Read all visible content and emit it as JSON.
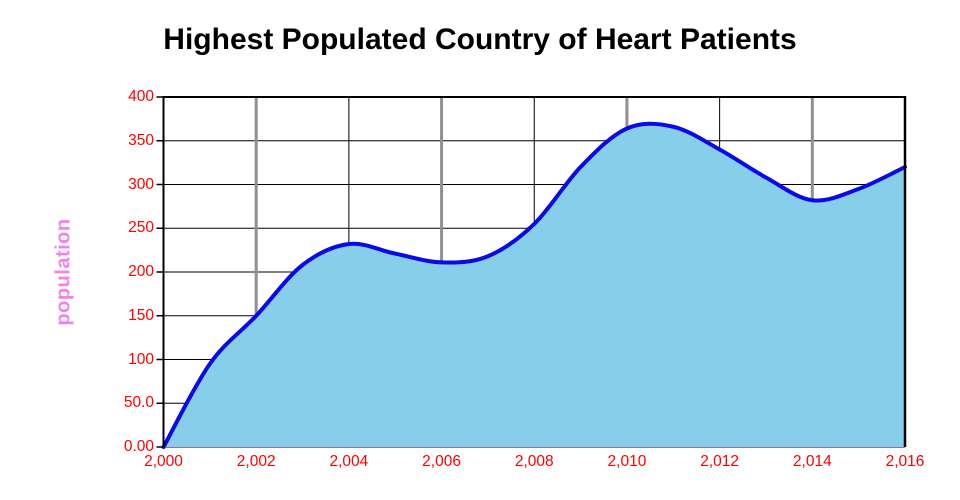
{
  "chart_data": {
    "type": "area",
    "title": "Highest Populated Country of Heart Patients",
    "xlabel": "",
    "ylabel": "population",
    "curve": "smooth",
    "grid": "on",
    "legend": "none",
    "x": [
      2000,
      2001,
      2002,
      2003,
      2004,
      2005,
      2006,
      2007,
      2008,
      2009,
      2010,
      2011,
      2012,
      2013,
      2014,
      2015,
      2016
    ],
    "values": [
      0,
      95,
      150,
      208,
      232,
      221,
      211,
      218,
      255,
      320,
      364,
      366,
      340,
      308,
      282,
      295,
      320
    ],
    "xlim": [
      2000,
      2016
    ],
    "ylim": [
      0,
      400
    ],
    "x_tick_values": [
      2000,
      2002,
      2004,
      2006,
      2008,
      2010,
      2012,
      2014,
      2016
    ],
    "x_tick_labels": [
      "2,000",
      "2,002",
      "2,004",
      "2,006",
      "2,008",
      "2,010",
      "2,012",
      "2,014",
      "2,016"
    ],
    "y_tick_values": [
      0,
      50,
      100,
      150,
      200,
      250,
      300,
      350,
      400
    ],
    "y_tick_labels": [
      "0.00",
      "50.0",
      "100",
      "150",
      "200",
      "250",
      "300",
      "350",
      "400"
    ],
    "emphasized_x_gridlines": [
      2002,
      2006,
      2010,
      2014
    ],
    "colors": {
      "line": "#0a0ae6",
      "fill": "#87ceeb",
      "tick_label": "#ff0000",
      "ylabel": "#ef82ee",
      "title": "#000000",
      "grid": "#000000",
      "grid_emphasis": "#909090",
      "axis": "#000000",
      "background": "#ffffff"
    }
  }
}
